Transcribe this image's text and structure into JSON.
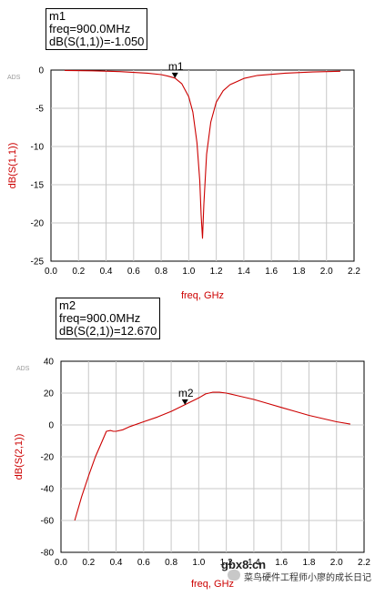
{
  "chart_data": [
    {
      "type": "line",
      "ads_tag": "ADS",
      "xlabel": "freq, GHz",
      "ylabel": "dB(S(1,1))",
      "xlim": [
        0.0,
        2.2
      ],
      "ylim": [
        -25,
        0
      ],
      "grid": true,
      "x_ticks": [
        "0.0",
        "0.2",
        "0.4",
        "0.6",
        "0.8",
        "1.0",
        "1.2",
        "1.4",
        "1.6",
        "1.8",
        "2.0",
        "2.2"
      ],
      "y_ticks": [
        "0",
        "-5",
        "-10",
        "-15",
        "-20",
        "-25"
      ],
      "series": [
        {
          "color": "#cc0000",
          "x": [
            0.1,
            0.3,
            0.5,
            0.7,
            0.8,
            0.85,
            0.9,
            0.95,
            1.0,
            1.03,
            1.06,
            1.08,
            1.09,
            1.1,
            1.11,
            1.13,
            1.16,
            1.2,
            1.25,
            1.3,
            1.4,
            1.5,
            1.7,
            1.9,
            2.1
          ],
          "y": [
            -0.05,
            -0.1,
            -0.2,
            -0.4,
            -0.6,
            -0.8,
            -1.05,
            -1.8,
            -3.5,
            -5.5,
            -9.5,
            -14.5,
            -19.0,
            -22.0,
            -17.5,
            -11.0,
            -6.8,
            -4.2,
            -2.7,
            -1.9,
            -1.1,
            -0.7,
            -0.4,
            -0.25,
            -0.15
          ]
        }
      ],
      "marker": {
        "label": "m1",
        "x": 0.9,
        "y": -1.05,
        "lines": [
          "m1",
          "freq=900.0MHz",
          "dB(S(1,1))=-1.050"
        ]
      }
    },
    {
      "type": "line",
      "ads_tag": "ADS",
      "xlabel": "freq, GHz",
      "ylabel": "dB(S(2,1))",
      "xlim": [
        0.0,
        2.2
      ],
      "ylim": [
        -80,
        40
      ],
      "grid": true,
      "x_ticks": [
        "0.0",
        "0.2",
        "0.4",
        "0.6",
        "0.8",
        "1.0",
        "1.2",
        "1.4",
        "1.6",
        "1.8",
        "2.0",
        "2.2"
      ],
      "y_ticks": [
        "40",
        "20",
        "0",
        "-20",
        "-40",
        "-60",
        "-80"
      ],
      "series": [
        {
          "color": "#cc0000",
          "x": [
            0.1,
            0.15,
            0.2,
            0.25,
            0.3,
            0.33,
            0.36,
            0.38,
            0.4,
            0.45,
            0.5,
            0.6,
            0.7,
            0.8,
            0.9,
            1.0,
            1.05,
            1.1,
            1.15,
            1.2,
            1.3,
            1.4,
            1.5,
            1.6,
            1.7,
            1.8,
            1.9,
            2.0,
            2.1
          ],
          "y": [
            -60,
            -45,
            -32,
            -20,
            -10,
            -4,
            -3.5,
            -4,
            -4,
            -3,
            -1,
            2,
            5,
            8.5,
            12.7,
            17,
            19.5,
            20.5,
            20.5,
            20,
            18,
            16,
            13.5,
            11,
            8.5,
            6,
            4,
            2,
            0.5
          ]
        }
      ],
      "marker": {
        "label": "m2",
        "x": 0.9,
        "y": 12.67,
        "lines": [
          "m2",
          "freq=900.0MHz",
          "dB(S(2,1))=12.670"
        ]
      }
    }
  ],
  "watermark": {
    "site": "gbx8.cn",
    "account": "菜鸟硬件工程师小廖的成长日记"
  }
}
